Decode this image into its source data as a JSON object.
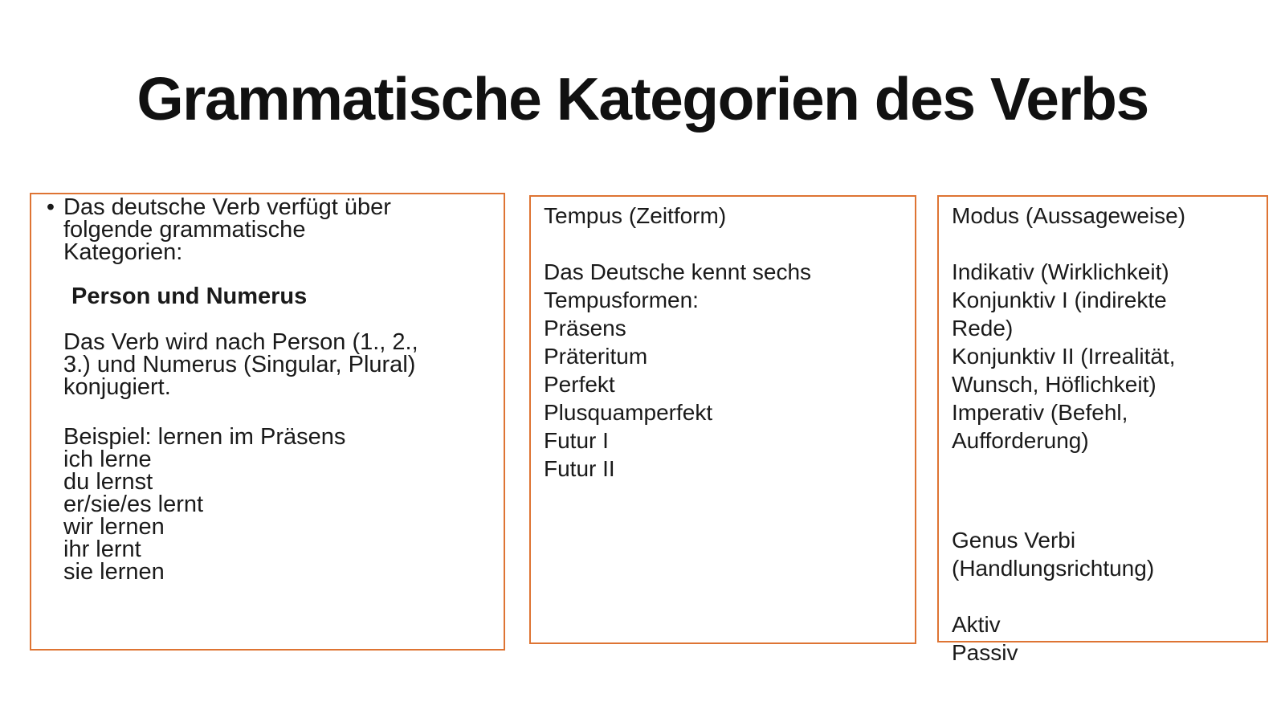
{
  "colors": {
    "accent": "#DE7433",
    "text": "#1A1A1A",
    "title": "#111111",
    "background": "#FFFFFF"
  },
  "title": "Grammatische Kategorien des Verbs",
  "bullet_glyph": "•",
  "person_box": {
    "bullet_lines": [
      "Das deutsche Verb verfügt über",
      "folgende grammatische",
      "Kategorien:"
    ],
    "heading": "Person und Numerus",
    "description_lines": [
      "Das Verb wird nach Person (1., 2.,",
      "3.) und Numerus (Singular, Plural)",
      "konjugiert."
    ],
    "example_lines": [
      "Beispiel: lernen im Präsens",
      "ich lerne",
      "du lernst",
      "er/sie/es lernt",
      "wir lernen",
      "ihr lernt",
      "sie lernen"
    ]
  },
  "tempus_box": {
    "heading": "Tempus (Zeitform)",
    "intro_lines": [
      "Das Deutsche kennt sechs",
      "Tempusformen:"
    ],
    "tense_lines": [
      "Präsens",
      "Präteritum",
      "Perfekt",
      "Plusquamperfekt",
      "Futur I",
      "Futur II"
    ]
  },
  "modus_box": {
    "heading": "Modus (Aussageweise)",
    "mode_lines": [
      "Indikativ (Wirklichkeit)",
      "Konjunktiv I (indirekte",
      "Rede)",
      "Konjunktiv II (Irrealität,",
      "Wunsch, Höflichkeit)",
      "Imperativ (Befehl,",
      "Aufforderung)"
    ],
    "genus_heading_lines": [
      "Genus Verbi",
      "(Handlungsrichtung)"
    ],
    "genus_lines": [
      "Aktiv",
      "Passiv"
    ]
  }
}
